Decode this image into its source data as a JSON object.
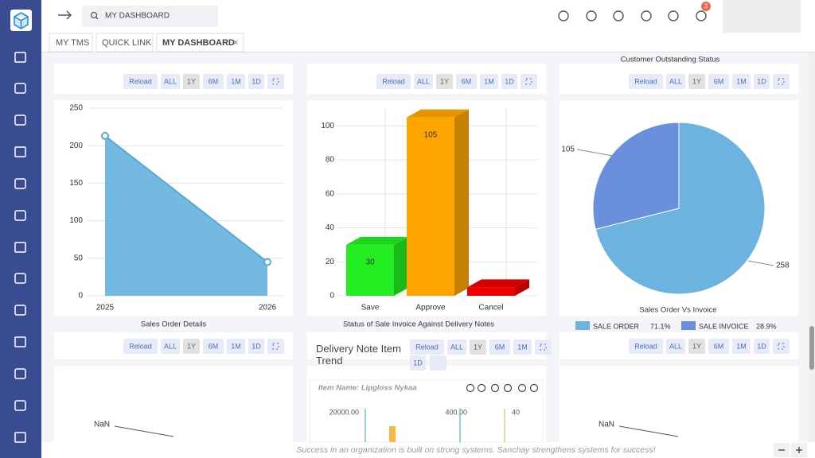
{
  "search_text": "MY DASHBOARD",
  "notifications": 3,
  "tabs": [
    "MY TMS",
    "QUICK LINK",
    "MY DASHBOARD"
  ],
  "tab_close": "×",
  "range_buttons": [
    "Reload",
    "ALL",
    "1Y",
    "6M",
    "1M",
    "1D"
  ],
  "top_right_caption": "Customer Outstanding Status",
  "charts": [
    {
      "type": "area",
      "title": "Sales Order Details",
      "categories": [
        "2025",
        "2026"
      ],
      "values": [
        213,
        45
      ],
      "color": "#74b9df",
      "line_color": "#5aa8d6",
      "ylim": [
        0,
        250
      ],
      "yticks": [
        0,
        50,
        100,
        150,
        200,
        250
      ],
      "grid": true
    },
    {
      "type": "bar3d",
      "title": "Status of Sale Invoice Against Delivery Notes",
      "categories": [
        "Save",
        "Approve",
        "Cancel"
      ],
      "values": [
        30,
        105,
        5
      ],
      "colors": [
        "#22ee22",
        "#ffa500",
        "#ee0000"
      ],
      "ylim": [
        0,
        110
      ],
      "yticks": [
        0,
        20,
        40,
        60,
        80,
        100
      ],
      "grid": true
    },
    {
      "type": "pie",
      "title": "Sales Order Vs Invoice",
      "categories": [
        "SALE ORDER",
        "SALE INVOICE"
      ],
      "values": [
        258,
        105
      ],
      "legend_values": [
        "71.1%",
        "28.9%"
      ],
      "colors": [
        "#6cb3e0",
        "#6a8fdc"
      ]
    }
  ],
  "bottom": {
    "nan_label": "NaN",
    "trend_title": "Delivery Note Item Trend",
    "item_name": "Item Name: Lipgloss Nykaa",
    "axis_labels": [
      "20000.00",
      "400.00",
      "40"
    ]
  },
  "footer": "Success in an organization is built on strong systems. Sanchay strengthens systems for success!"
}
